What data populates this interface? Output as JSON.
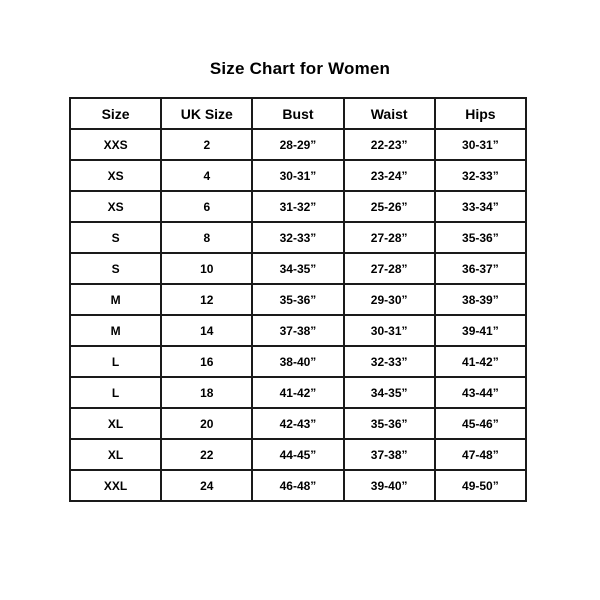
{
  "chart_data": {
    "type": "table",
    "title": "Size Chart for Women",
    "columns": [
      "Size",
      "UK Size",
      "Bust",
      "Waist",
      "Hips"
    ],
    "rows": [
      [
        "XXS",
        "2",
        "28-29”",
        "22-23”",
        "30-31”"
      ],
      [
        "XS",
        "4",
        "30-31”",
        "23-24”",
        "32-33”"
      ],
      [
        "XS",
        "6",
        "31-32”",
        "25-26”",
        "33-34”"
      ],
      [
        "S",
        "8",
        "32-33”",
        "27-28”",
        "35-36”"
      ],
      [
        "S",
        "10",
        "34-35”",
        "27-28”",
        "36-37”"
      ],
      [
        "M",
        "12",
        "35-36”",
        "29-30”",
        "38-39”"
      ],
      [
        "M",
        "14",
        "37-38”",
        "30-31”",
        "39-41”"
      ],
      [
        "L",
        "16",
        "38-40”",
        "32-33”",
        "41-42”"
      ],
      [
        "L",
        "18",
        "41-42”",
        "34-35”",
        "43-44”"
      ],
      [
        "XL",
        "20",
        "42-43”",
        "35-36”",
        "45-46”"
      ],
      [
        "XL",
        "22",
        "44-45”",
        "37-38”",
        "47-48”"
      ],
      [
        "XXL",
        "24",
        "46-48”",
        "39-40”",
        "49-50”"
      ]
    ],
    "layout": {
      "legend": "none",
      "grid": "full-borders"
    },
    "colors": {
      "border_color": "#1a1a1a",
      "text_color": "#000000",
      "background_color": "#ffffff"
    }
  }
}
